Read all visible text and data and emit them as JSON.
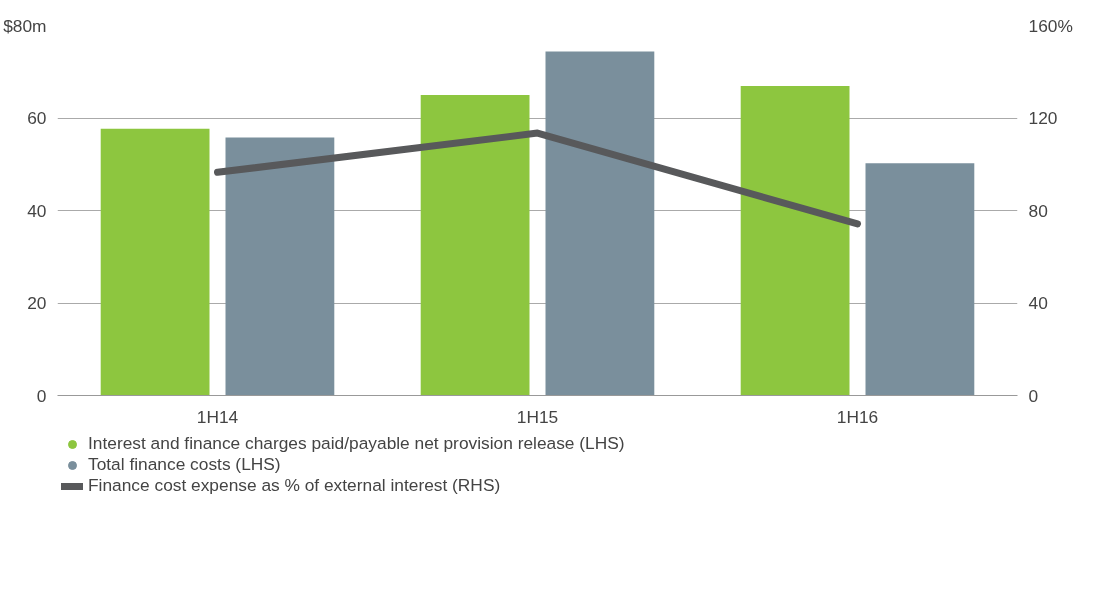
{
  "chart_data": {
    "type": "bar",
    "categories": [
      "1H14",
      "1H15",
      "1H16"
    ],
    "series": [
      {
        "name": "Interest and finance charges paid/payable net provision release (LHS)",
        "color": "#8dc63f",
        "values": [
          57.7,
          65,
          66.9
        ]
      },
      {
        "name": "Total finance costs (LHS)",
        "color": "#7a8f9c",
        "values": [
          55.8,
          74.4,
          50.2
        ]
      },
      {
        "name": "Finance cost expense as % of external interest (RHS)",
        "type": "line",
        "axis": "y2",
        "color": "#58595b",
        "values": [
          96.5,
          113.5,
          74.2
        ]
      }
    ],
    "ylim": [
      0,
      80
    ],
    "yticks": [
      0,
      20,
      40,
      60,
      {
        "value": 80,
        "label": "$80m"
      }
    ],
    "y2lim": [
      0,
      160
    ],
    "y2ticks": [
      0,
      40,
      80,
      120,
      {
        "value": 160,
        "label": "160%"
      }
    ],
    "grid": "y",
    "legend": "bottom"
  }
}
